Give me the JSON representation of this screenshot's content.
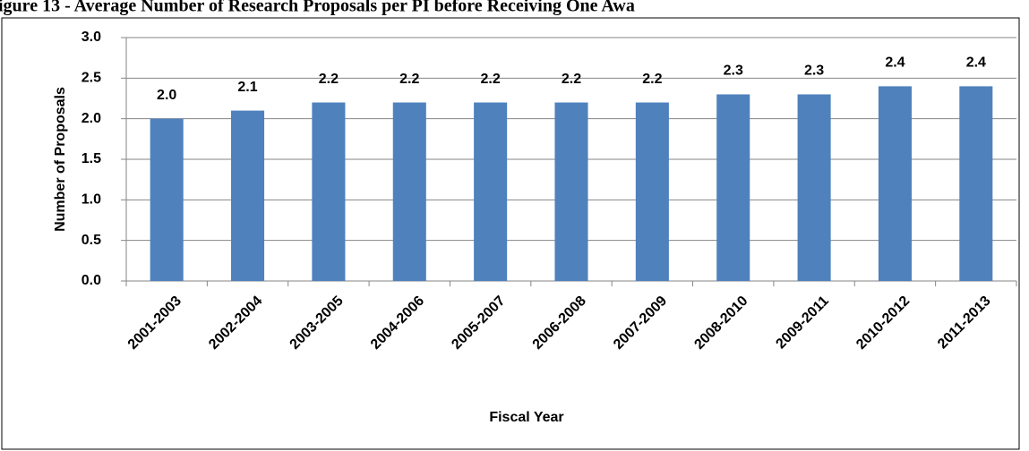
{
  "chart_data": {
    "type": "bar",
    "title": "igure 13 - Average Number of Research Proposals per PI before Receiving One Awa",
    "x_label": "Fiscal Year",
    "y_label": "Number of Proposals",
    "categories": [
      "2001-2003",
      "2002-2004",
      "2003-2005",
      "2004-2006",
      "2005-2007",
      "2006-2008",
      "2007-2009",
      "2008-2010",
      "2009-2011",
      "2010-2012",
      "2011-2013"
    ],
    "values": [
      2.0,
      2.1,
      2.2,
      2.2,
      2.2,
      2.2,
      2.2,
      2.3,
      2.3,
      2.4,
      2.4
    ],
    "value_labels": [
      "2.0",
      "2.1",
      "2.2",
      "2.2",
      "2.2",
      "2.2",
      "2.2",
      "2.3",
      "2.3",
      "2.4",
      "2.4"
    ],
    "color": "#4f81bd",
    "ylim": [
      0,
      3
    ],
    "yticks": [
      {
        "value": 0,
        "label": "0.0"
      },
      0.5,
      {
        "value": 1,
        "label": "1.0"
      },
      1.5,
      {
        "value": 2,
        "label": "2.0"
      },
      2.5,
      {
        "value": 3,
        "label": "3.0"
      }
    ],
    "grid": true
  }
}
